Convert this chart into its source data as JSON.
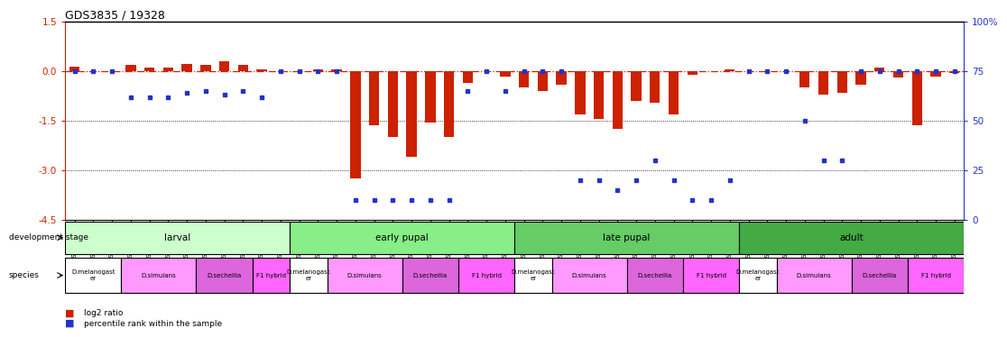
{
  "title": "GDS3835 / 19328",
  "samples": [
    "GSM435987",
    "GSM436078",
    "GSM436079",
    "GSM436091",
    "GSM436092",
    "GSM436093",
    "GSM436827",
    "GSM436828",
    "GSM436829",
    "GSM436839",
    "GSM436841",
    "GSM436842",
    "GSM436080",
    "GSM436083",
    "GSM436084",
    "GSM436094",
    "GSM436095",
    "GSM436096",
    "GSM436830",
    "GSM436831",
    "GSM436832",
    "GSM436848",
    "GSM436850",
    "GSM436852",
    "GSM436085",
    "GSM436086",
    "GSM436087",
    "GSM436097",
    "GSM436098",
    "GSM436099",
    "GSM436833",
    "GSM436834",
    "GSM436835",
    "GSM436854",
    "GSM436856",
    "GSM436857",
    "GSM436088",
    "GSM436089",
    "GSM436090",
    "GSM436100",
    "GSM436101",
    "GSM436102",
    "GSM436836",
    "GSM436837",
    "GSM436838",
    "GSM437041",
    "GSM437091",
    "GSM437092"
  ],
  "log2_ratio": [
    0.15,
    0.0,
    0.0,
    0.18,
    0.12,
    0.1,
    0.22,
    0.2,
    0.3,
    0.18,
    0.05,
    0.0,
    0.0,
    0.05,
    0.05,
    -3.25,
    -1.65,
    -2.0,
    -2.6,
    -1.55,
    -2.0,
    -0.35,
    0.0,
    -0.15,
    -0.5,
    -0.6,
    -0.4,
    -1.3,
    -1.45,
    -1.75,
    -0.9,
    -0.95,
    -1.3,
    -0.1,
    0.0,
    0.05,
    0.0,
    0.0,
    0.0,
    -0.5,
    -0.7,
    -0.65,
    -0.4,
    0.1,
    -0.2,
    -1.65,
    -0.15,
    -0.05
  ],
  "percentile": [
    75,
    75,
    75,
    62,
    62,
    62,
    64,
    65,
    63,
    65,
    62,
    75,
    75,
    75,
    75,
    10,
    10,
    10,
    10,
    10,
    10,
    65,
    75,
    65,
    75,
    75,
    75,
    20,
    20,
    15,
    20,
    30,
    20,
    10,
    10,
    20,
    75,
    75,
    75,
    50,
    30,
    30,
    75,
    75,
    75,
    75,
    75,
    75
  ],
  "ylim_left": [
    -4.5,
    1.5
  ],
  "ylim_right": [
    0,
    100
  ],
  "yticks_left": [
    1.5,
    0.0,
    -1.5,
    -3.0,
    -4.5
  ],
  "yticks_right": [
    100,
    75,
    50,
    25,
    0
  ],
  "bar_color": "#cc2200",
  "dot_color": "#2233cc",
  "dev_stages": [
    {
      "label": "larval",
      "start": 0,
      "end": 11,
      "color": "#ccffcc"
    },
    {
      "label": "early pupal",
      "start": 12,
      "end": 23,
      "color": "#88ee88"
    },
    {
      "label": "late pupal",
      "start": 24,
      "end": 35,
      "color": "#66cc66"
    },
    {
      "label": "adult",
      "start": 36,
      "end": 47,
      "color": "#44aa44"
    }
  ],
  "species_groups": [
    {
      "label": "D.melanogast\ner",
      "start": 0,
      "end": 2,
      "color": "#ffffff"
    },
    {
      "label": "D.simulans",
      "start": 3,
      "end": 6,
      "color": "#ff99ff"
    },
    {
      "label": "D.sechellia",
      "start": 7,
      "end": 9,
      "color": "#dd66dd"
    },
    {
      "label": "F1 hybrid",
      "start": 10,
      "end": 11,
      "color": "#ff66ff"
    },
    {
      "label": "D.melanogast\ner",
      "start": 12,
      "end": 13,
      "color": "#ffffff"
    },
    {
      "label": "D.simulans",
      "start": 14,
      "end": 17,
      "color": "#ff99ff"
    },
    {
      "label": "D.sechellia",
      "start": 18,
      "end": 20,
      "color": "#dd66dd"
    },
    {
      "label": "F1 hybrid",
      "start": 21,
      "end": 23,
      "color": "#ff66ff"
    },
    {
      "label": "D.melanogast\ner",
      "start": 24,
      "end": 25,
      "color": "#ffffff"
    },
    {
      "label": "D.simulans",
      "start": 26,
      "end": 29,
      "color": "#ff99ff"
    },
    {
      "label": "D.sechellia",
      "start": 30,
      "end": 32,
      "color": "#dd66dd"
    },
    {
      "label": "F1 hybrid",
      "start": 33,
      "end": 35,
      "color": "#ff66ff"
    },
    {
      "label": "D.melanogast\ner",
      "start": 36,
      "end": 37,
      "color": "#ffffff"
    },
    {
      "label": "D.simulans",
      "start": 38,
      "end": 41,
      "color": "#ff99ff"
    },
    {
      "label": "D.sechellia",
      "start": 42,
      "end": 44,
      "color": "#dd66dd"
    },
    {
      "label": "F1 hybrid",
      "start": 45,
      "end": 47,
      "color": "#ff66ff"
    }
  ],
  "legend_items": [
    {
      "marker": "s",
      "color": "#cc2200",
      "label": "log2 ratio"
    },
    {
      "marker": "s",
      "color": "#2233cc",
      "label": "percentile rank within the sample"
    }
  ]
}
